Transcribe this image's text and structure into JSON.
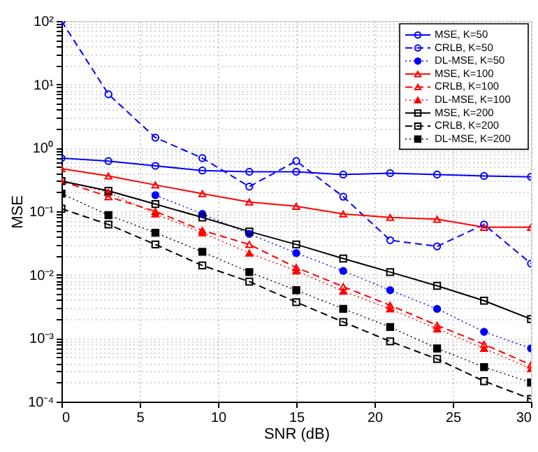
{
  "chart_data": {
    "type": "line",
    "xlabel": "SNR (dB)",
    "ylabel": "MSE",
    "log": "y",
    "x": [
      0,
      3,
      6,
      9,
      12,
      15,
      18,
      21,
      24,
      27,
      30
    ],
    "xlim": [
      0,
      30
    ],
    "xticks": [
      0,
      5,
      10,
      15,
      20,
      25,
      30
    ],
    "ylim": [
      0.0001,
      100
    ],
    "yticks": [
      {
        "value": 0.0001,
        "label": "10⁻⁴"
      },
      {
        "value": 0.0002,
        "label": null
      },
      {
        "value": 0.0003,
        "label": null
      },
      {
        "value": 0.0004,
        "label": null
      },
      {
        "value": 0.0005,
        "label": null
      },
      {
        "value": 0.0006,
        "label": null
      },
      {
        "value": 0.0007,
        "label": null
      },
      {
        "value": 0.0008,
        "label": null
      },
      {
        "value": 0.0009,
        "label": null
      },
      {
        "value": 0.001,
        "label": "10⁻³"
      },
      {
        "value": 0.002,
        "label": null
      },
      {
        "value": 0.003,
        "label": null
      },
      {
        "value": 0.004,
        "label": null
      },
      {
        "value": 0.005,
        "label": null
      },
      {
        "value": 0.006,
        "label": null
      },
      {
        "value": 0.007,
        "label": null
      },
      {
        "value": 0.008,
        "label": null
      },
      {
        "value": 0.009,
        "label": null
      },
      {
        "value": 0.01,
        "label": "10⁻²"
      },
      {
        "value": 0.02,
        "label": null
      },
      {
        "value": 0.03,
        "label": null
      },
      {
        "value": 0.04,
        "label": null
      },
      {
        "value": 0.05,
        "label": null
      },
      {
        "value": 0.06,
        "label": null
      },
      {
        "value": 0.07,
        "label": null
      },
      {
        "value": 0.08,
        "label": null
      },
      {
        "value": 0.09,
        "label": null
      },
      {
        "value": 0.1,
        "label": "10⁻¹"
      },
      {
        "value": 0.2,
        "label": null
      },
      {
        "value": 0.3,
        "label": null
      },
      {
        "value": 0.4,
        "label": null
      },
      {
        "value": 0.5,
        "label": null
      },
      {
        "value": 0.6,
        "label": null
      },
      {
        "value": 0.7,
        "label": null
      },
      {
        "value": 0.8,
        "label": null
      },
      {
        "value": 0.9,
        "label": null
      },
      {
        "value": 1,
        "label": "10⁰"
      },
      {
        "value": 2,
        "label": null
      },
      {
        "value": 3,
        "label": null
      },
      {
        "value": 4,
        "label": null
      },
      {
        "value": 5,
        "label": null
      },
      {
        "value": 6,
        "label": null
      },
      {
        "value": 7,
        "label": null
      },
      {
        "value": 8,
        "label": null
      },
      {
        "value": 9,
        "label": null
      },
      {
        "value": 10,
        "label": "10¹"
      },
      {
        "value": 20,
        "label": null
      },
      {
        "value": 30,
        "label": null
      },
      {
        "value": 40,
        "label": null
      },
      {
        "value": 50,
        "label": null
      },
      {
        "value": 60,
        "label": null
      },
      {
        "value": 70,
        "label": null
      },
      {
        "value": 80,
        "label": null
      },
      {
        "value": 90,
        "label": null
      },
      {
        "value": 100,
        "label": "10²"
      }
    ],
    "grid": true,
    "legend": "top right",
    "series": [
      {
        "name": "MSE, K=50",
        "color": "#0000ff",
        "marker": "circle",
        "line_style": "solid",
        "values": [
          0.69,
          0.62,
          0.52,
          0.44,
          0.42,
          0.42,
          0.38,
          0.4,
          0.38,
          0.36,
          0.35
        ]
      },
      {
        "name": "CRLB, K=50",
        "color": "#0000ff",
        "marker": "circle",
        "line_style": "dashed",
        "values": [
          100,
          7,
          1.45,
          0.69,
          0.245,
          0.62,
          0.17,
          0.035,
          0.028,
          0.062,
          0.015
        ]
      },
      {
        "name": "DL-MSE, K=50",
        "color": "#0000ff",
        "marker": "circle",
        "line_style": "dotted",
        "values": [
          null,
          null,
          0.18,
          0.091,
          0.044,
          0.022,
          0.0115,
          0.0057,
          0.0029,
          0.00126,
          0.00069
        ]
      },
      {
        "name": "MSE, K=100",
        "color": "#ff0000",
        "marker": "triangle",
        "line_style": "solid",
        "values": [
          0.47,
          0.36,
          0.26,
          0.19,
          0.14,
          0.12,
          0.091,
          0.08,
          0.075,
          0.056,
          0.056
        ]
      },
      {
        "name": "CRLB,  K=100",
        "color": "#ff0000",
        "marker": "triangle",
        "line_style": "dashed",
        "values": [
          0.3,
          0.17,
          0.1,
          0.05,
          0.03,
          0.013,
          0.0065,
          0.0033,
          0.0016,
          0.0008,
          0.00038
        ]
      },
      {
        "name": "DL-MSE, K=100",
        "color": "#ff0000",
        "marker": "triangle",
        "line_style": "dotted",
        "values": [
          0.3,
          0.2,
          0.091,
          0.046,
          0.022,
          0.0115,
          0.0055,
          0.0029,
          0.0014,
          0.00069,
          0.00033
        ]
      },
      {
        "name": "MSE, K=200",
        "color": "#000000",
        "marker": "square",
        "line_style": "solid",
        "values": [
          0.3,
          0.21,
          0.13,
          0.08,
          0.048,
          0.03,
          0.018,
          0.011,
          0.0067,
          0.0039,
          0.002
        ]
      },
      {
        "name": "CRLB, K=200",
        "color": "#000000",
        "marker": "square",
        "line_style": "dashed",
        "values": [
          0.11,
          0.062,
          0.03,
          0.014,
          0.0078,
          0.0037,
          0.0018,
          0.00089,
          0.00047,
          0.00021,
          0.00011
        ]
      },
      {
        "name": "DL-MSE, K=200",
        "color": "#000000",
        "marker": "square",
        "line_style": "dotted",
        "values": [
          0.19,
          0.087,
          0.046,
          0.023,
          0.011,
          0.0057,
          0.0029,
          0.0015,
          0.00069,
          0.00035,
          0.0002
        ]
      }
    ]
  }
}
